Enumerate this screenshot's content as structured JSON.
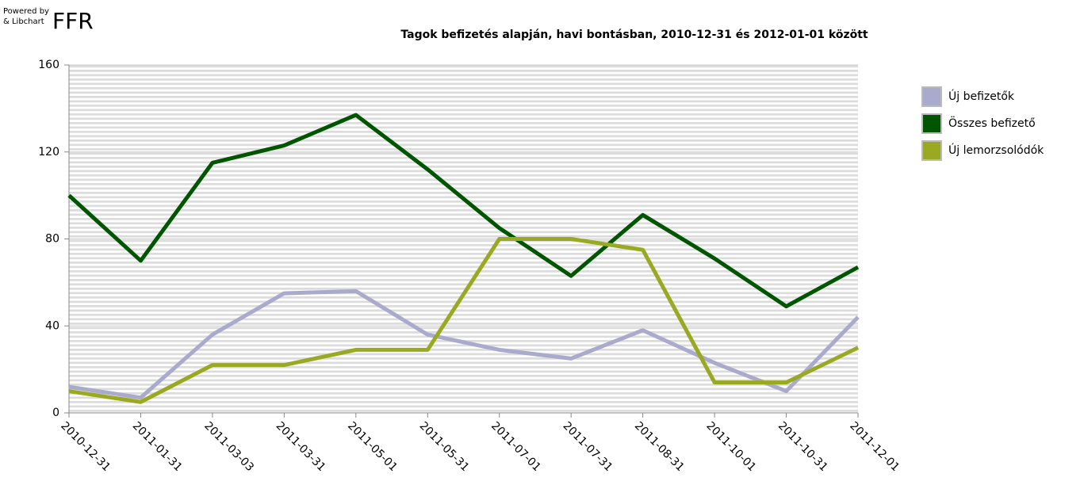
{
  "logo": {
    "line1": "Powered by",
    "line2": "& Libchart",
    "brand": "FFR"
  },
  "chart_data": {
    "type": "line",
    "title": "Tagok befizetés alapján, havi bontásban, 2010-12-31 és 2012-01-01 között",
    "categories": [
      "2010-12-31",
      "2011-01-31",
      "2011-03-03",
      "2011-03-31",
      "2011-05-01",
      "2011-05-31",
      "2011-07-01",
      "2011-07-31",
      "2011-08-31",
      "2011-10-01",
      "2011-10-31",
      "2011-12-01"
    ],
    "series": [
      {
        "name": "Új befizetők",
        "color": "#aaaacc",
        "values": [
          12,
          7,
          36,
          55,
          56,
          36,
          29,
          25,
          38,
          23,
          10,
          44
        ]
      },
      {
        "name": "Összes befizető",
        "color": "#005500",
        "values": [
          100,
          70,
          115,
          123,
          137,
          112,
          85,
          63,
          91,
          71,
          49,
          67
        ]
      },
      {
        "name": "Új lemorzsolódók",
        "color": "#99aa22",
        "values": [
          10,
          5,
          22,
          22,
          29,
          29,
          80,
          80,
          75,
          14,
          14,
          30
        ]
      }
    ],
    "ylim": [
      0,
      160
    ],
    "yticks": [
      0,
      40,
      80,
      120,
      160
    ],
    "grid": true,
    "legend": "right"
  }
}
